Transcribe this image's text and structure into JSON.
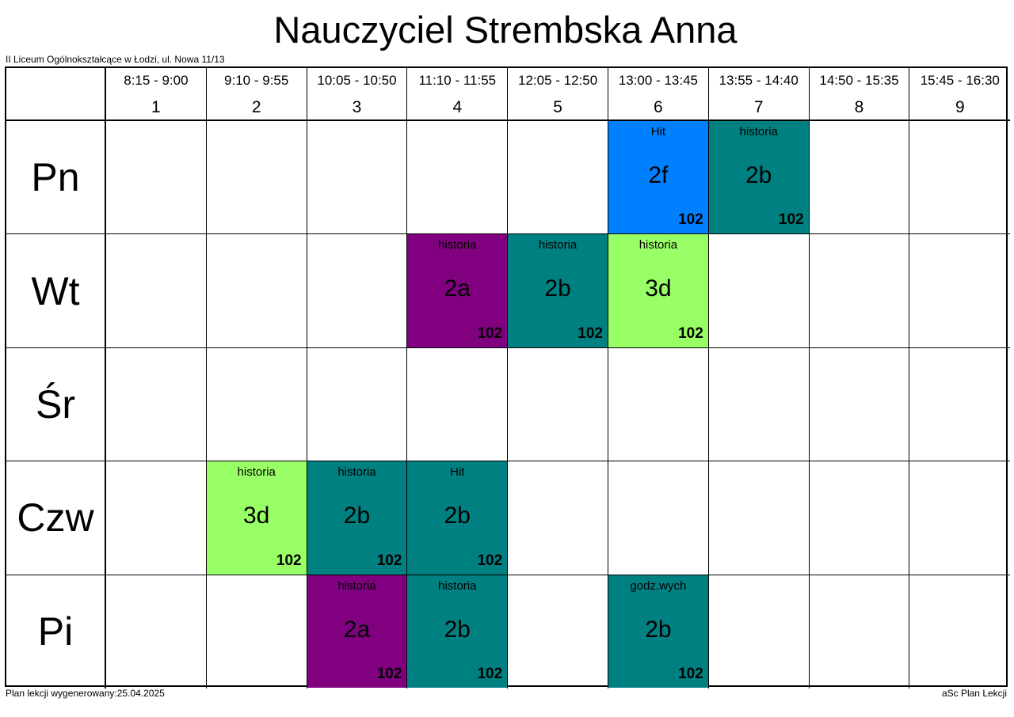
{
  "title": "Nauczyciel Strembska Anna",
  "school": "II Liceum Ogólnokształcące w Łodzi, ul. Nowa 11/13",
  "footer_left": "Plan lekcji wygenerowany:25.04.2025",
  "footer_right": "aSc Plan Lekcji",
  "periods": [
    {
      "time": "8:15 - 9:00",
      "num": "1"
    },
    {
      "time": "9:10 - 9:55",
      "num": "2"
    },
    {
      "time": "10:05 - 10:50",
      "num": "3"
    },
    {
      "time": "11:10 - 11:55",
      "num": "4"
    },
    {
      "time": "12:05 - 12:50",
      "num": "5"
    },
    {
      "time": "13:00 - 13:45",
      "num": "6"
    },
    {
      "time": "13:55 - 14:40",
      "num": "7"
    },
    {
      "time": "14:50 - 15:35",
      "num": "8"
    },
    {
      "time": "15:45 - 16:30",
      "num": "9"
    }
  ],
  "days": [
    "Pn",
    "Wt",
    "Śr",
    "Czw",
    "Pi"
  ],
  "colors": {
    "blue": "#0080ff",
    "teal": "#008080",
    "purple": "#800080",
    "lightgreen": "#99ff66"
  },
  "lessons": [
    {
      "day": 0,
      "period": 6,
      "subject": "Hit",
      "class": "2f",
      "room": "102",
      "color": "#0080ff"
    },
    {
      "day": 0,
      "period": 7,
      "subject": "historia",
      "class": "2b",
      "room": "102",
      "color": "#008080"
    },
    {
      "day": 1,
      "period": 4,
      "subject": "historia",
      "class": "2a",
      "room": "102",
      "color": "#800080"
    },
    {
      "day": 1,
      "period": 5,
      "subject": "historia",
      "class": "2b",
      "room": "102",
      "color": "#008080"
    },
    {
      "day": 1,
      "period": 6,
      "subject": "historia",
      "class": "3d",
      "room": "102",
      "color": "#99ff66"
    },
    {
      "day": 3,
      "period": 2,
      "subject": "historia",
      "class": "3d",
      "room": "102",
      "color": "#99ff66"
    },
    {
      "day": 3,
      "period": 3,
      "subject": "historia",
      "class": "2b",
      "room": "102",
      "color": "#008080"
    },
    {
      "day": 3,
      "period": 4,
      "subject": "Hit",
      "class": "2b",
      "room": "102",
      "color": "#008080"
    },
    {
      "day": 4,
      "period": 3,
      "subject": "historia",
      "class": "2a",
      "room": "102",
      "color": "#800080"
    },
    {
      "day": 4,
      "period": 4,
      "subject": "historia",
      "class": "2b",
      "room": "102",
      "color": "#008080"
    },
    {
      "day": 4,
      "period": 6,
      "subject": "godz.wych",
      "class": "2b",
      "room": "102",
      "color": "#008080"
    }
  ]
}
